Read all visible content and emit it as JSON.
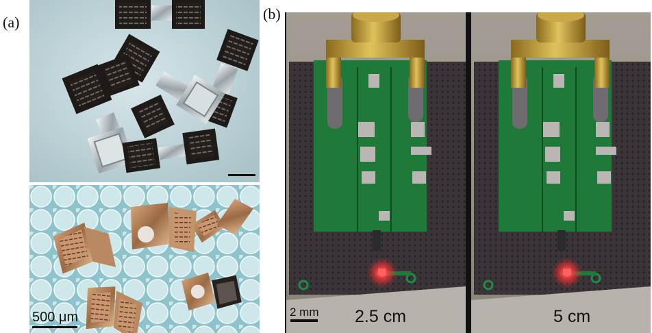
{
  "panels": {
    "a": {
      "letter": "(a)",
      "top_image": "planar-sensor-chips-photo",
      "bottom_image": "folded-sensor-structures-photo",
      "scale_label": "500 μm"
    },
    "b": {
      "letter": "(b)",
      "image": "pcb-led-demo-photo",
      "scale_label": "2 mm",
      "left_distance": "2.5 cm",
      "right_distance": "5 cm"
    }
  },
  "colors": {
    "chip_dark": "#1e1a18",
    "top_bg": "#c3d8dd",
    "bottom_bg": "#9fcfd7",
    "pcb_green": "#1f7a3a",
    "board_dark": "#3a3438",
    "led_red": "#ff3b3b",
    "brass": "#b8922e"
  }
}
